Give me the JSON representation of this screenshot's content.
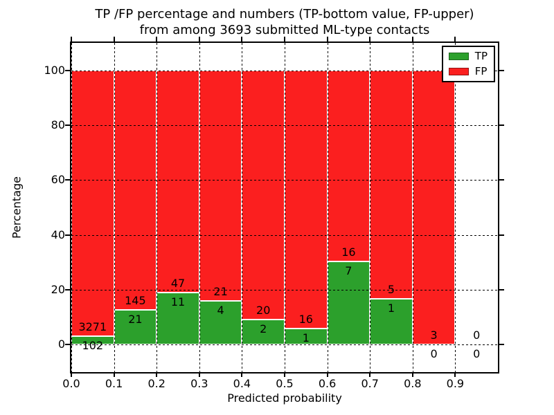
{
  "figure": {
    "title_line1": "TP /FP percentage and numbers (TP-bottom value, FP-upper)",
    "title_line2": "from among 3693 submitted ML-type contacts",
    "xlabel": "Predicted probability",
    "ylabel": "Percentage"
  },
  "colors": {
    "tp": "#2ca02c",
    "fp": "#fb1f1f",
    "tp_edge": "#1c641c",
    "fp_edge": "#8f1212",
    "bar_edge": "#ffffff",
    "grid": "#000000"
  },
  "legend": {
    "entries": [
      {
        "label": "TP",
        "series": "tp"
      },
      {
        "label": "FP",
        "series": "fp"
      }
    ]
  },
  "chart_data": {
    "type": "bar",
    "stacked": true,
    "normalized": "each bin scaled so TP+FP = 100%",
    "total_contacts": 3693,
    "bin_edges": [
      0.0,
      0.1,
      0.2,
      0.3,
      0.4,
      0.5,
      0.6,
      0.7,
      0.8,
      0.9,
      1.0
    ],
    "series": [
      {
        "name": "TP",
        "color": "#2ca02c",
        "counts": [
          102,
          21,
          11,
          4,
          2,
          1,
          7,
          1,
          0,
          0
        ]
      },
      {
        "name": "FP",
        "color": "#fb1f1f",
        "counts": [
          3271,
          145,
          47,
          21,
          20,
          16,
          16,
          5,
          3,
          0
        ]
      }
    ],
    "tp_percent_by_bin": [
      3.02,
      12.65,
      18.97,
      16.0,
      9.09,
      5.88,
      30.43,
      16.67,
      0.0,
      null
    ],
    "title": "TP /FP percentage and numbers (TP-bottom value, FP-upper) from among 3693 submitted ML-type contacts",
    "xlabel": "Predicted probability",
    "ylabel": "Percentage",
    "xlim": [
      0.0,
      1.0
    ],
    "ylim": [
      -10,
      110
    ],
    "xticks": {
      "values": [
        0.0,
        0.1,
        0.2,
        0.3,
        0.4,
        0.5,
        0.6,
        0.7,
        0.8,
        0.9
      ],
      "labels": [
        "0.0",
        "0.1",
        "0.2",
        "0.3",
        "0.4",
        "0.5",
        "0.6",
        "0.7",
        "0.8",
        "0.9"
      ]
    },
    "yticks": {
      "values": [
        0,
        20,
        40,
        60,
        80,
        100
      ],
      "labels": [
        "0",
        "20",
        "40",
        "60",
        "80",
        "100"
      ]
    },
    "grid": "dotted",
    "legend_position": "upper right"
  }
}
